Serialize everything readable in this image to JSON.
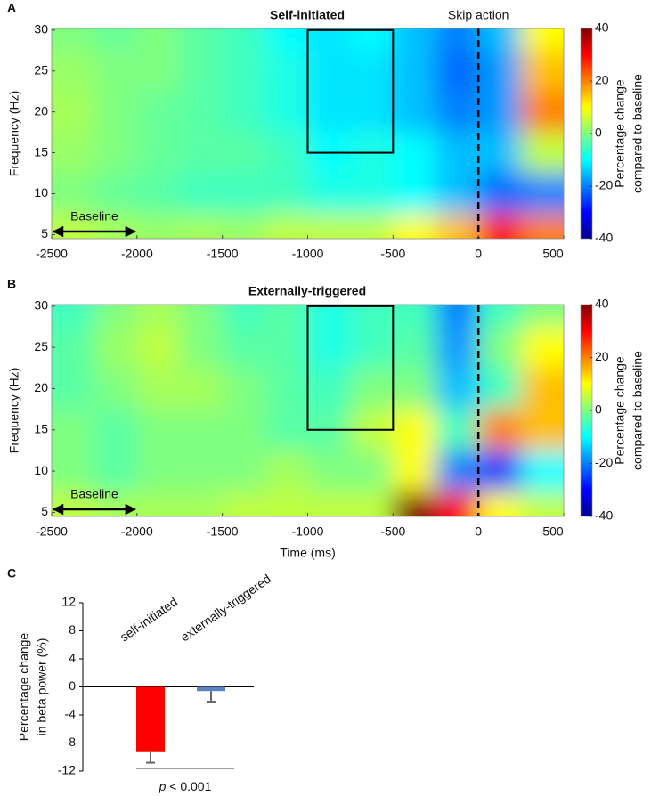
{
  "chart_data": [
    {
      "type": "heatmap",
      "panel": "A",
      "title": "Self-initiated",
      "ylabel": "Frequency (Hz)",
      "event_label": "Skip action",
      "event_x": 0,
      "baseline_label": "Baseline",
      "baseline": [
        -2500,
        -2000
      ],
      "roi": {
        "x": [
          -1000,
          -500
        ],
        "y": [
          15,
          30
        ]
      },
      "x": [
        -2375,
        -2125,
        -1875,
        -1625,
        -1375,
        -1125,
        -875,
        -625,
        -375,
        -125,
        125,
        375
      ],
      "y": [
        30,
        25,
        20,
        15,
        10,
        5
      ],
      "z": [
        [
          0,
          -2,
          0,
          -3,
          -5,
          -10,
          -12,
          -10,
          -15,
          -20,
          -15,
          10
        ],
        [
          2,
          0,
          0,
          -3,
          -5,
          -8,
          -12,
          -12,
          -15,
          -22,
          -18,
          15
        ],
        [
          3,
          0,
          -2,
          -3,
          -5,
          -8,
          -12,
          -12,
          -15,
          -20,
          -18,
          20
        ],
        [
          2,
          0,
          -2,
          -3,
          -3,
          -5,
          -10,
          -8,
          -10,
          -15,
          -15,
          5
        ],
        [
          0,
          -2,
          -3,
          -5,
          -5,
          -5,
          -8,
          -8,
          -10,
          -15,
          -22,
          -20
        ],
        [
          5,
          3,
          2,
          3,
          2,
          5,
          5,
          5,
          10,
          15,
          30,
          20
        ]
      ],
      "xlim": [
        -2500,
        500
      ],
      "xticks": [
        -2500,
        -2000,
        -1500,
        -1000,
        -500,
        0,
        500
      ],
      "ylim": [
        4.5,
        30.2
      ],
      "yticks": [
        5,
        10,
        15,
        20,
        25,
        30
      ],
      "zlim": [
        -40,
        40
      ],
      "zticks": [
        -40,
        -20,
        0,
        20,
        40
      ],
      "colormap": "jet",
      "colorbar_label": [
        "Percentage change",
        "compared to baseline"
      ]
    },
    {
      "type": "heatmap",
      "panel": "B",
      "title": "Externally-triggered",
      "ylabel": "Frequency (Hz)",
      "xlabel": "Time (ms)",
      "event_x": 0,
      "baseline_label": "Baseline",
      "baseline": [
        -2500,
        -2000
      ],
      "roi": {
        "x": [
          -1000,
          -500
        ],
        "y": [
          15,
          30
        ]
      },
      "x": [
        -2375,
        -2125,
        -1875,
        -1625,
        -1375,
        -1125,
        -875,
        -625,
        -375,
        -125,
        125,
        375
      ],
      "y": [
        30,
        25,
        20,
        15,
        10,
        5
      ],
      "z": [
        [
          -5,
          0,
          3,
          0,
          -5,
          -3,
          -8,
          -5,
          -5,
          -20,
          -5,
          0
        ],
        [
          -3,
          2,
          5,
          0,
          -3,
          -3,
          -8,
          -5,
          -3,
          -18,
          0,
          10
        ],
        [
          -3,
          0,
          3,
          3,
          0,
          -3,
          -5,
          0,
          0,
          -15,
          -5,
          15
        ],
        [
          0,
          -3,
          0,
          0,
          0,
          -3,
          -3,
          5,
          10,
          -5,
          20,
          15
        ],
        [
          0,
          -3,
          0,
          0,
          0,
          3,
          0,
          0,
          10,
          -20,
          -25,
          -10
        ],
        [
          5,
          3,
          3,
          3,
          5,
          5,
          5,
          5,
          40,
          30,
          10,
          5
        ]
      ],
      "xlim": [
        -2500,
        500
      ],
      "xticks": [
        -2500,
        -2000,
        -1500,
        -1000,
        -500,
        0,
        500
      ],
      "ylim": [
        4.5,
        30.2
      ],
      "yticks": [
        5,
        10,
        15,
        20,
        25,
        30
      ],
      "zlim": [
        -40,
        40
      ],
      "zticks": [
        -40,
        -20,
        0,
        20,
        40
      ],
      "colormap": "jet",
      "colorbar_label": [
        "Percentage change",
        "compared to baseline"
      ]
    },
    {
      "type": "bar",
      "panel": "C",
      "ylabel": [
        "Percentage change",
        "in beta power (%)"
      ],
      "categories": [
        "self-initiated",
        "externally-triggered"
      ],
      "values": [
        -9.3,
        -0.6
      ],
      "errors": [
        1.5,
        1.5
      ],
      "colors": [
        "#ff0000",
        "#5b84c4"
      ],
      "ylim": [
        -12,
        12
      ],
      "yticks": [
        12,
        8,
        4,
        0,
        -4,
        -8,
        -12
      ],
      "annotation_italic": "p",
      "annotation": "< 0.001",
      "significance_y": -11.6
    }
  ]
}
